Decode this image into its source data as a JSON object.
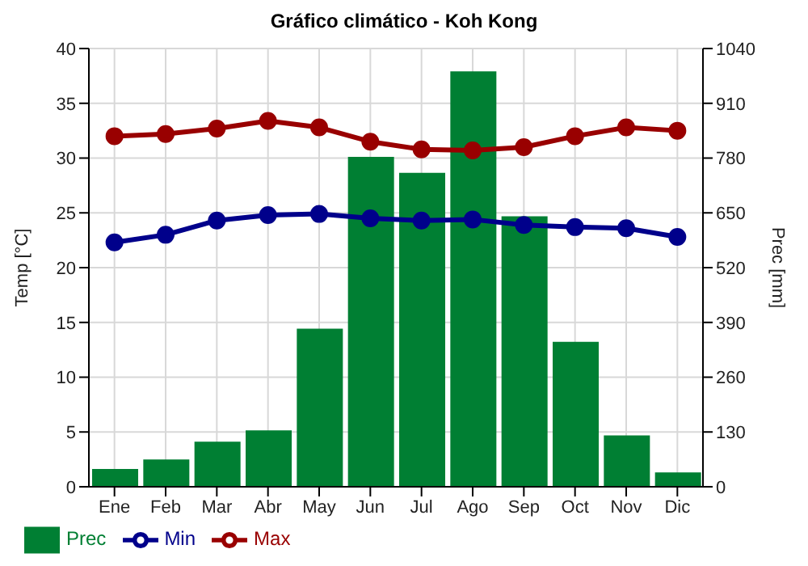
{
  "chart_data": {
    "type": "bar",
    "title": "Gráfico climático - Koh Kong",
    "ylabel": "Temp [°C]",
    "y2label": "Prec [mm]",
    "categories": [
      "Ene",
      "Feb",
      "Mar",
      "Abr",
      "May",
      "Jun",
      "Jul",
      "Ago",
      "Sep",
      "Oct",
      "Nov",
      "Dic"
    ],
    "series": [
      {
        "name": "Prec",
        "axis": "y2",
        "color": "#007f33",
        "values": [
          42,
          65,
          107,
          134,
          375,
          783,
          745,
          986,
          642,
          344,
          122,
          34
        ]
      },
      {
        "name": "Min",
        "type": "line",
        "color": "#00008b",
        "values": [
          22.3,
          23.0,
          24.3,
          24.8,
          24.9,
          24.5,
          24.3,
          24.4,
          23.9,
          23.7,
          23.6,
          22.8
        ]
      },
      {
        "name": "Max",
        "type": "line",
        "color": "#990000",
        "values": [
          32.0,
          32.2,
          32.7,
          33.4,
          32.8,
          31.5,
          30.8,
          30.7,
          31.0,
          32.0,
          32.8,
          32.5
        ]
      }
    ],
    "ylim": [
      0,
      40
    ],
    "yticks": [
      0,
      5,
      10,
      15,
      20,
      25,
      30,
      35,
      40
    ],
    "y2lim": [
      0,
      1040
    ],
    "y2ticks": [
      0,
      130,
      260,
      390,
      520,
      650,
      780,
      910,
      1040
    ],
    "grid": true,
    "legend": "bottom",
    "marker": "circle",
    "line_style": "solid"
  }
}
